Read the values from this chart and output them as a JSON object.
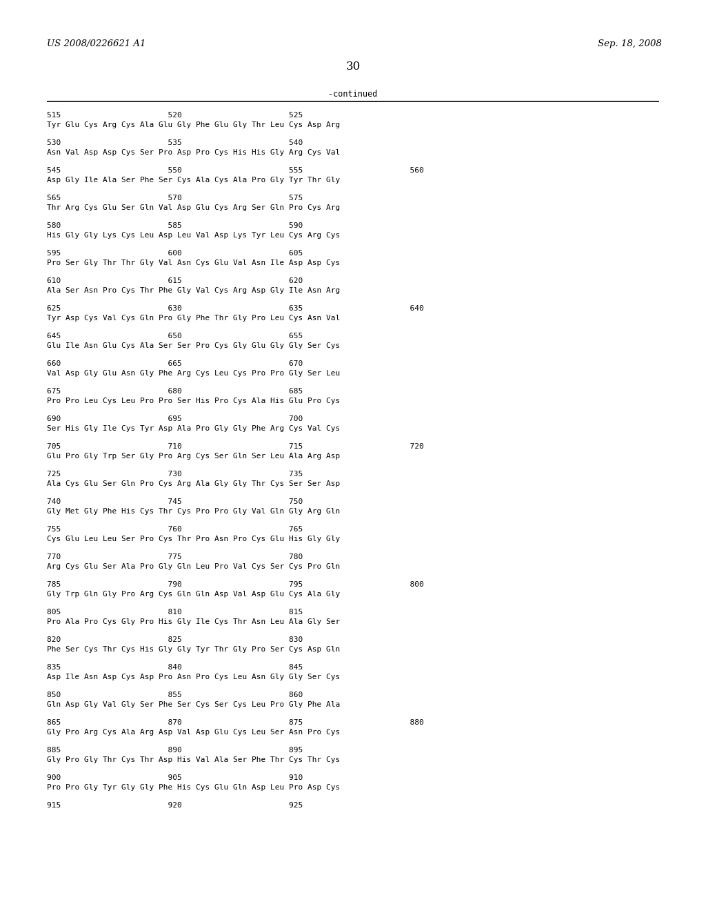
{
  "header_left": "US 2008/0226621 A1",
  "header_right": "Sep. 18, 2008",
  "page_number": "30",
  "continued_label": "-continued",
  "background_color": "#ffffff",
  "text_color": "#000000",
  "lines": [
    {
      "type": "numbering",
      "text": "515                       520                       525"
    },
    {
      "type": "sequence",
      "text": "Tyr Glu Cys Arg Cys Ala Glu Gly Phe Glu Gly Thr Leu Cys Asp Arg"
    },
    {
      "type": "numbering",
      "text": "530                       535                       540"
    },
    {
      "type": "sequence",
      "text": "Asn Val Asp Asp Cys Ser Pro Asp Pro Cys His His Gly Arg Cys Val"
    },
    {
      "type": "numbering",
      "text": "545                       550                       555                       560"
    },
    {
      "type": "sequence",
      "text": "Asp Gly Ile Ala Ser Phe Ser Cys Ala Cys Ala Pro Gly Tyr Thr Gly"
    },
    {
      "type": "numbering",
      "text": "565                       570                       575"
    },
    {
      "type": "sequence",
      "text": "Thr Arg Cys Glu Ser Gln Val Asp Glu Cys Arg Ser Gln Pro Cys Arg"
    },
    {
      "type": "numbering",
      "text": "580                       585                       590"
    },
    {
      "type": "sequence",
      "text": "His Gly Gly Lys Cys Leu Asp Leu Val Asp Lys Tyr Leu Cys Arg Cys"
    },
    {
      "type": "numbering",
      "text": "595                       600                       605"
    },
    {
      "type": "sequence",
      "text": "Pro Ser Gly Thr Thr Gly Val Asn Cys Glu Val Asn Ile Asp Asp Cys"
    },
    {
      "type": "numbering",
      "text": "610                       615                       620"
    },
    {
      "type": "sequence",
      "text": "Ala Ser Asn Pro Cys Thr Phe Gly Val Cys Arg Asp Gly Ile Asn Arg"
    },
    {
      "type": "numbering",
      "text": "625                       630                       635                       640"
    },
    {
      "type": "sequence",
      "text": "Tyr Asp Cys Val Cys Gln Pro Gly Phe Thr Gly Pro Leu Cys Asn Val"
    },
    {
      "type": "numbering",
      "text": "645                       650                       655"
    },
    {
      "type": "sequence",
      "text": "Glu Ile Asn Glu Cys Ala Ser Ser Pro Cys Gly Glu Gly Gly Ser Cys"
    },
    {
      "type": "numbering",
      "text": "660                       665                       670"
    },
    {
      "type": "sequence",
      "text": "Val Asp Gly Glu Asn Gly Phe Arg Cys Leu Cys Pro Pro Gly Ser Leu"
    },
    {
      "type": "numbering",
      "text": "675                       680                       685"
    },
    {
      "type": "sequence",
      "text": "Pro Pro Leu Cys Leu Pro Pro Ser His Pro Cys Ala His Glu Pro Cys"
    },
    {
      "type": "numbering",
      "text": "690                       695                       700"
    },
    {
      "type": "sequence",
      "text": "Ser His Gly Ile Cys Tyr Asp Ala Pro Gly Gly Phe Arg Cys Val Cys"
    },
    {
      "type": "numbering",
      "text": "705                       710                       715                       720"
    },
    {
      "type": "sequence",
      "text": "Glu Pro Gly Trp Ser Gly Pro Arg Cys Ser Gln Ser Leu Ala Arg Asp"
    },
    {
      "type": "numbering",
      "text": "725                       730                       735"
    },
    {
      "type": "sequence",
      "text": "Ala Cys Glu Ser Gln Pro Cys Arg Ala Gly Gly Thr Cys Ser Ser Asp"
    },
    {
      "type": "numbering",
      "text": "740                       745                       750"
    },
    {
      "type": "sequence",
      "text": "Gly Met Gly Phe His Cys Thr Cys Pro Pro Gly Val Gln Gly Arg Gln"
    },
    {
      "type": "numbering",
      "text": "755                       760                       765"
    },
    {
      "type": "sequence",
      "text": "Cys Glu Leu Leu Ser Pro Cys Thr Pro Asn Pro Cys Glu His Gly Gly"
    },
    {
      "type": "numbering",
      "text": "770                       775                       780"
    },
    {
      "type": "sequence",
      "text": "Arg Cys Glu Ser Ala Pro Gly Gln Leu Pro Val Cys Ser Cys Pro Gln"
    },
    {
      "type": "numbering",
      "text": "785                       790                       795                       800"
    },
    {
      "type": "sequence",
      "text": "Gly Trp Gln Gly Pro Arg Cys Gln Gln Asp Val Asp Glu Cys Ala Gly"
    },
    {
      "type": "numbering",
      "text": "805                       810                       815"
    },
    {
      "type": "sequence",
      "text": "Pro Ala Pro Cys Gly Pro His Gly Ile Cys Thr Asn Leu Ala Gly Ser"
    },
    {
      "type": "numbering",
      "text": "820                       825                       830"
    },
    {
      "type": "sequence",
      "text": "Phe Ser Cys Thr Cys His Gly Gly Tyr Thr Gly Pro Ser Cys Asp Gln"
    },
    {
      "type": "numbering",
      "text": "835                       840                       845"
    },
    {
      "type": "sequence",
      "text": "Asp Ile Asn Asp Cys Asp Pro Asn Pro Cys Leu Asn Gly Gly Ser Cys"
    },
    {
      "type": "numbering",
      "text": "850                       855                       860"
    },
    {
      "type": "sequence",
      "text": "Gln Asp Gly Val Gly Ser Phe Ser Cys Ser Cys Leu Pro Gly Phe Ala"
    },
    {
      "type": "numbering",
      "text": "865                       870                       875                       880"
    },
    {
      "type": "sequence",
      "text": "Gly Pro Arg Cys Ala Arg Asp Val Asp Glu Cys Leu Ser Asn Pro Cys"
    },
    {
      "type": "numbering",
      "text": "885                       890                       895"
    },
    {
      "type": "sequence",
      "text": "Gly Pro Gly Thr Cys Thr Asp His Val Ala Ser Phe Thr Cys Thr Cys"
    },
    {
      "type": "numbering",
      "text": "900                       905                       910"
    },
    {
      "type": "sequence",
      "text": "Pro Pro Gly Tyr Gly Gly Phe His Cys Glu Gln Asp Leu Pro Asp Cys"
    },
    {
      "type": "numbering",
      "text": "915                       920                       925"
    }
  ]
}
